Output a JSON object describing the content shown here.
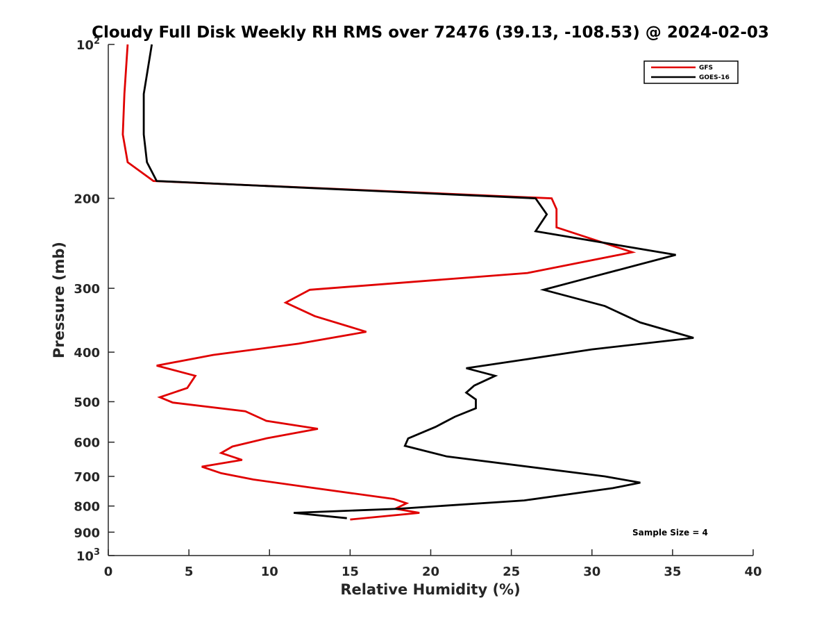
{
  "chart_data": {
    "type": "line",
    "title": "Cloudy Full Disk Weekly RH RMS over 72476 (39.13, -108.53) @ 2024-02-03",
    "xlabel": "Relative Humidity (%)",
    "ylabel": "Pressure (mb)",
    "xlim": [
      0,
      40
    ],
    "ylim": [
      100,
      1000
    ],
    "yscale": "log",
    "y_reversed": true,
    "x_ticks": [
      "0",
      "5",
      "10",
      "15",
      "20",
      "25",
      "30",
      "35",
      "40"
    ],
    "y_ticks": [
      {
        "value": 100,
        "base": "10",
        "exp": "2"
      },
      {
        "value": 200,
        "label": "200"
      },
      {
        "value": 300,
        "label": "300"
      },
      {
        "value": 400,
        "label": "400"
      },
      {
        "value": 500,
        "label": "500"
      },
      {
        "value": 600,
        "label": "600"
      },
      {
        "value": 700,
        "label": "700"
      },
      {
        "value": 800,
        "label": "800"
      },
      {
        "value": 900,
        "label": "900"
      },
      {
        "value": 1000,
        "base": "10",
        "exp": "3"
      }
    ],
    "grid": false,
    "legend_position": "top-right",
    "series": [
      {
        "name": "GFS",
        "color": "#e00000",
        "points": [
          [
            1.2,
            100
          ],
          [
            1.0,
            125
          ],
          [
            0.9,
            150
          ],
          [
            1.2,
            170
          ],
          [
            2.8,
            185
          ],
          [
            27.5,
            200
          ],
          [
            27.8,
            210
          ],
          [
            27.8,
            228
          ],
          [
            32.5,
            255
          ],
          [
            26.0,
            280
          ],
          [
            12.5,
            302
          ],
          [
            11.0,
            320
          ],
          [
            12.8,
            340
          ],
          [
            16.0,
            365
          ],
          [
            11.8,
            385
          ],
          [
            6.5,
            405
          ],
          [
            3.0,
            425
          ],
          [
            5.4,
            445
          ],
          [
            4.9,
            470
          ],
          [
            3.2,
            490
          ],
          [
            4.0,
            502
          ],
          [
            8.5,
            522
          ],
          [
            9.8,
            545
          ],
          [
            13.0,
            565
          ],
          [
            9.8,
            590
          ],
          [
            7.7,
            612
          ],
          [
            7.0,
            630
          ],
          [
            8.3,
            650
          ],
          [
            5.8,
            670
          ],
          [
            7.0,
            690
          ],
          [
            9.0,
            710
          ],
          [
            12.8,
            738
          ],
          [
            17.7,
            775
          ],
          [
            18.5,
            790
          ],
          [
            17.8,
            810
          ],
          [
            19.3,
            825
          ],
          [
            15.0,
            850
          ]
        ]
      },
      {
        "name": "GOES-16",
        "color": "#000000",
        "points": [
          [
            2.7,
            100
          ],
          [
            2.2,
            125
          ],
          [
            2.2,
            150
          ],
          [
            2.4,
            170
          ],
          [
            3.0,
            185
          ],
          [
            26.5,
            200
          ],
          [
            27.2,
            215
          ],
          [
            26.5,
            232
          ],
          [
            35.2,
            258
          ],
          [
            30.0,
            285
          ],
          [
            27.0,
            302
          ],
          [
            30.8,
            325
          ],
          [
            33.0,
            350
          ],
          [
            36.3,
            375
          ],
          [
            30.0,
            395
          ],
          [
            25.5,
            415
          ],
          [
            22.2,
            430
          ],
          [
            24.0,
            445
          ],
          [
            22.7,
            465
          ],
          [
            22.2,
            480
          ],
          [
            22.8,
            495
          ],
          [
            22.8,
            515
          ],
          [
            21.5,
            535
          ],
          [
            20.3,
            560
          ],
          [
            18.6,
            590
          ],
          [
            18.4,
            610
          ],
          [
            21.0,
            640
          ],
          [
            30.8,
            700
          ],
          [
            33.0,
            720
          ],
          [
            31.3,
            738
          ],
          [
            25.8,
            780
          ],
          [
            18.0,
            810
          ],
          [
            11.5,
            825
          ],
          [
            14.8,
            845
          ]
        ]
      }
    ],
    "annotations": [
      "Sample Size = 4"
    ]
  }
}
